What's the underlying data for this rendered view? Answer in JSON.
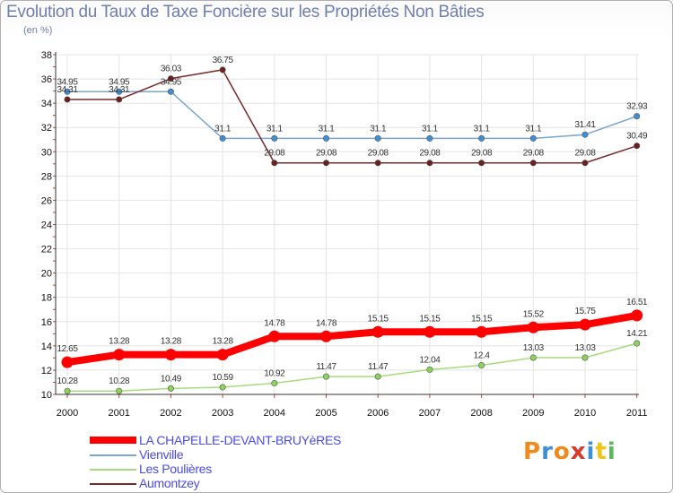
{
  "title": "Evolution du Taux de Taxe Foncière sur les Propriétés Non Bâties",
  "subtitle": "(en %)",
  "logo_text": "Proxiti",
  "logo_colors": [
    "#f08a1c",
    "#3c8fd8",
    "#f08a1c",
    "#d63b2b",
    "#3c8fd8",
    "#f0c419",
    "#5cb85c"
  ],
  "chart_data": {
    "type": "line",
    "title": "Evolution du Taux de Taxe Foncière sur les Propriétés Non Bâties",
    "ylabel": "(en %)",
    "xlabel": "",
    "ylim": [
      10,
      38
    ],
    "yticks": [
      10,
      12,
      14,
      16,
      18,
      20,
      22,
      24,
      26,
      28,
      30,
      32,
      34,
      36,
      38
    ],
    "categories": [
      "2000",
      "2001",
      "2002",
      "2003",
      "2004",
      "2005",
      "2006",
      "2007",
      "2008",
      "2009",
      "2010",
      "2011"
    ],
    "series": [
      {
        "name": "LA CHAPELLE-DEVANT-BRUYèRES",
        "color": "#ff0000",
        "bold": true,
        "values": [
          12.65,
          13.28,
          13.28,
          13.28,
          14.78,
          14.78,
          15.15,
          15.15,
          15.15,
          15.52,
          15.75,
          16.51
        ],
        "labels": [
          "12.65",
          "13.28",
          "13.28",
          "13.28",
          "14.78",
          "14.78",
          "15.15",
          "15.15",
          "15.15",
          "15.52",
          "15.75",
          "16.51"
        ]
      },
      {
        "name": "Vienville",
        "color": "#7aa6cf",
        "marker": "#3f8fd8",
        "values": [
          34.95,
          34.95,
          34.95,
          31.1,
          31.1,
          31.1,
          31.1,
          31.1,
          31.1,
          31.1,
          31.41,
          32.93
        ],
        "labels": [
          "34.95",
          "34.95",
          "34.95",
          "31.1",
          "31.1",
          "31.1",
          "31.1",
          "31.1",
          "31.1",
          "31.1",
          "31.41",
          "32.93"
        ]
      },
      {
        "name": "Les Poulières",
        "color": "#a6dc7c",
        "marker": "#8bd45a",
        "values": [
          10.28,
          10.28,
          10.49,
          10.59,
          10.92,
          11.47,
          11.47,
          12.04,
          12.4,
          13.03,
          13.03,
          14.21
        ],
        "labels": [
          "10.28",
          "10.28",
          "10.49",
          "10.59",
          "10.92",
          "11.47",
          "11.47",
          "12.04",
          "12.4",
          "13.03",
          "13.03",
          "14.21"
        ]
      },
      {
        "name": "Aumontzey",
        "color": "#7a2a2a",
        "marker": "#6b1f1f",
        "values": [
          34.31,
          34.31,
          36.03,
          36.75,
          29.08,
          29.08,
          29.08,
          29.08,
          29.08,
          29.08,
          29.08,
          30.49
        ],
        "labels": [
          "34.31",
          "34.31",
          "36.03",
          "36.75",
          "29.08",
          "29.08",
          "29.08",
          "29.08",
          "29.08",
          "29.08",
          "29.08",
          "30.49"
        ]
      }
    ],
    "legend_position": "bottom-left"
  }
}
